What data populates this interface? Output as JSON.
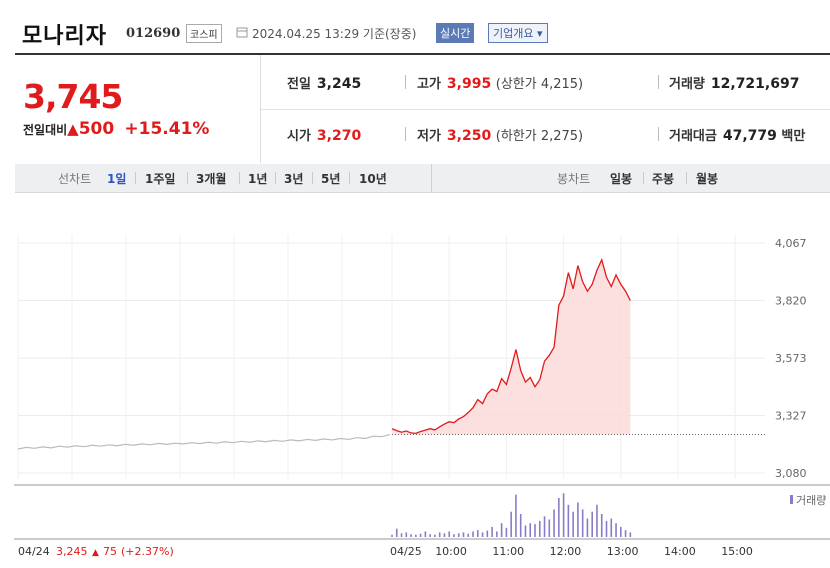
{
  "header": {
    "name": "모나리자",
    "code": "012690",
    "market": "코스피",
    "datetime": "2024.04.25 13:29 기준(장중)",
    "realtime": "실시간",
    "company_info": "기업개요 ▾"
  },
  "summary": {
    "price": "3,745",
    "change_label": "전일대비",
    "change_arrow": "▲",
    "change_value": "500",
    "change_pct": "+15.41%",
    "prev_close_label": "전일",
    "prev_close": "3,245",
    "high_label": "고가",
    "high": "3,995",
    "upper_limit": "(상한가 4,215)",
    "volume_label": "거래량",
    "volume": "12,721,697",
    "open_label": "시가",
    "open": "3,270",
    "low_label": "저가",
    "low": "3,250",
    "lower_limit": "(하한가 2,275)",
    "trade_value_label": "거래대금",
    "trade_value": "47,779",
    "trade_value_unit": "백만"
  },
  "tabs": {
    "line_chart_label": "선차트",
    "periods": [
      "1일",
      "1주일",
      "3개월",
      "1년",
      "3년",
      "5년",
      "10년"
    ],
    "candle_label": "봉차트",
    "candles": [
      "일봉",
      "주봉",
      "월봉"
    ]
  },
  "colors": {
    "up": "#e01b1b",
    "prev_day_line": "#bbbbbb",
    "volume": "#8a7bc8",
    "area_fill": "#fbd9d9"
  },
  "chart_data": {
    "type": "line",
    "ylim": [
      3080,
      4067
    ],
    "yticks": [
      "4,067",
      "3,820",
      "3,573",
      "3,327",
      "3,080"
    ],
    "xticks": [
      "10:00",
      "11:00",
      "12:00",
      "13:00",
      "14:00",
      "15:00"
    ],
    "reference_line": 3245,
    "volume_legend": "거래량",
    "prev_day_footer": {
      "date": "04/24",
      "price": "3,245",
      "arrow": "▲",
      "change": "75",
      "pct": "(+2.37%)"
    },
    "today_label": "04/25",
    "series": [
      {
        "values": [
          3183,
          3190,
          3186,
          3192,
          3188,
          3195,
          3191,
          3197,
          3193,
          3199,
          3195,
          3201,
          3197,
          3203,
          3199,
          3205,
          3201,
          3207,
          3203,
          3208,
          3205,
          3210,
          3206,
          3212,
          3208,
          3214,
          3210,
          3216,
          3212,
          3218,
          3214,
          3220,
          3216,
          3222,
          3218,
          3224,
          3220,
          3226,
          3222,
          3228,
          3224,
          3232,
          3228,
          3238,
          3236,
          3245
        ]
      },
      {
        "x": [
          "09:00",
          "09:05",
          "09:10",
          "09:15",
          "09:20",
          "09:25",
          "09:30",
          "09:35",
          "09:40",
          "09:45",
          "09:50",
          "09:55",
          "10:00",
          "10:05",
          "10:10",
          "10:15",
          "10:20",
          "10:25",
          "10:30",
          "10:35",
          "10:40",
          "10:45",
          "10:50",
          "10:55",
          "11:00",
          "11:05",
          "11:10",
          "11:15",
          "11:20",
          "11:25",
          "11:30",
          "11:35",
          "11:40",
          "11:45",
          "11:50",
          "11:55",
          "12:00",
          "12:05",
          "12:10",
          "12:15",
          "12:20",
          "12:25",
          "12:30",
          "12:35",
          "12:40",
          "12:45",
          "12:50",
          "12:55",
          "13:00",
          "13:05",
          "13:10"
        ],
        "values": [
          3270,
          3262,
          3255,
          3260,
          3252,
          3250,
          3258,
          3264,
          3270,
          3265,
          3278,
          3290,
          3300,
          3296,
          3312,
          3322,
          3340,
          3360,
          3395,
          3378,
          3420,
          3440,
          3430,
          3485,
          3460,
          3530,
          3610,
          3520,
          3470,
          3490,
          3450,
          3480,
          3560,
          3585,
          3620,
          3800,
          3840,
          3940,
          3870,
          3970,
          3900,
          3860,
          3890,
          3950,
          3995,
          3920,
          3880,
          3930,
          3890,
          3860,
          3820
        ]
      }
    ],
    "volume_relative": [
      0.05,
      0.18,
      0.08,
      0.1,
      0.06,
      0.05,
      0.07,
      0.12,
      0.06,
      0.05,
      0.1,
      0.08,
      0.12,
      0.06,
      0.08,
      0.1,
      0.07,
      0.12,
      0.15,
      0.1,
      0.14,
      0.22,
      0.12,
      0.3,
      0.2,
      0.55,
      0.92,
      0.5,
      0.25,
      0.3,
      0.28,
      0.35,
      0.45,
      0.38,
      0.6,
      0.85,
      0.95,
      0.7,
      0.55,
      0.75,
      0.6,
      0.4,
      0.55,
      0.7,
      0.5,
      0.35,
      0.4,
      0.3,
      0.22,
      0.15,
      0.1
    ]
  }
}
